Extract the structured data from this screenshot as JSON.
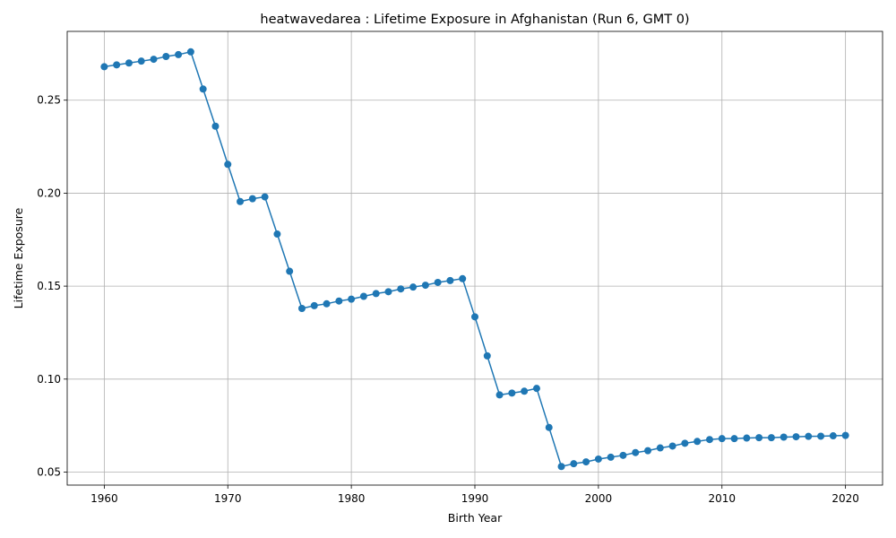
{
  "chart_data": {
    "type": "line",
    "title": "heatwavedarea : Lifetime Exposure in Afghanistan (Run 6, GMT 0)",
    "xlabel": "Birth Year",
    "ylabel": "Lifetime Exposure",
    "xlim": [
      1957,
      2023
    ],
    "ylim": [
      0.043,
      0.287
    ],
    "xticks": [
      1960,
      1970,
      1980,
      1990,
      2000,
      2010,
      2020
    ],
    "yticks": [
      0.05,
      0.1,
      0.15,
      0.2,
      0.25
    ],
    "ytick_labels": [
      "0.05",
      "0.10",
      "0.15",
      "0.20",
      "0.25"
    ],
    "grid": true,
    "color": "#1f77b4",
    "series": [
      {
        "x": [
          1960,
          1961,
          1962,
          1963,
          1964,
          1965,
          1966,
          1967,
          1968,
          1969,
          1970,
          1971,
          1972,
          1973,
          1974,
          1975,
          1976,
          1977,
          1978,
          1979,
          1980,
          1981,
          1982,
          1983,
          1984,
          1985,
          1986,
          1987,
          1988,
          1989,
          1990,
          1991,
          1992,
          1993,
          1994,
          1995,
          1996,
          1997,
          1998,
          1999,
          2000,
          2001,
          2002,
          2003,
          2004,
          2005,
          2006,
          2007,
          2008,
          2009,
          2010,
          2011,
          2012,
          2013,
          2014,
          2015,
          2016,
          2017,
          2018,
          2019,
          2020
        ],
        "y": [
          0.268,
          0.269,
          0.27,
          0.271,
          0.272,
          0.2735,
          0.2745,
          0.276,
          0.256,
          0.236,
          0.2155,
          0.1955,
          0.197,
          0.198,
          0.178,
          0.158,
          0.138,
          0.1395,
          0.1405,
          0.142,
          0.143,
          0.1445,
          0.146,
          0.147,
          0.1485,
          0.1495,
          0.1505,
          0.152,
          0.153,
          0.154,
          0.1335,
          0.1125,
          0.0915,
          0.0925,
          0.0935,
          0.095,
          0.074,
          0.053,
          0.0545,
          0.0555,
          0.057,
          0.058,
          0.059,
          0.0605,
          0.0615,
          0.063,
          0.064,
          0.0655,
          0.0665,
          0.0675,
          0.068,
          0.068,
          0.0683,
          0.0685,
          0.0685,
          0.0688,
          0.069,
          0.0692,
          0.0693,
          0.0695,
          0.0697
        ]
      }
    ]
  }
}
